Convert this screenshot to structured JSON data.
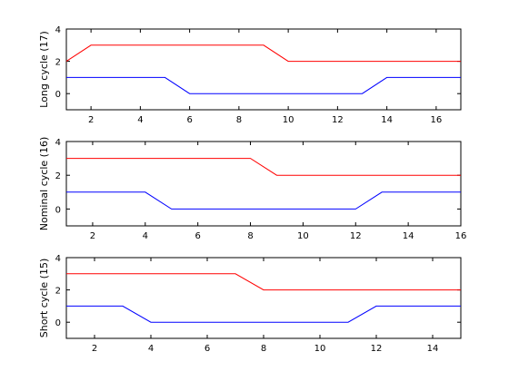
{
  "chart_data": [
    {
      "type": "line",
      "title": "",
      "xlabel": "",
      "ylabel": "Long cycle (17)",
      "xlim": [
        1,
        17
      ],
      "ylim": [
        -1,
        4
      ],
      "xticks": [
        2,
        4,
        6,
        8,
        10,
        12,
        14,
        16
      ],
      "yticks": [
        0,
        2,
        4
      ],
      "grid": false,
      "series": [
        {
          "color": "#ff0000",
          "x": [
            1,
            2,
            9,
            10,
            17
          ],
          "y": [
            2,
            3,
            3,
            2,
            2
          ]
        },
        {
          "color": "#0000ff",
          "x": [
            1,
            5,
            6,
            13,
            14,
            17
          ],
          "y": [
            1,
            1,
            0,
            0,
            1,
            1
          ]
        }
      ]
    },
    {
      "type": "line",
      "title": "",
      "xlabel": "",
      "ylabel": "Nominal cycle (16)",
      "xlim": [
        1,
        16
      ],
      "ylim": [
        -1,
        4
      ],
      "xticks": [
        2,
        4,
        6,
        8,
        10,
        12,
        14,
        16
      ],
      "yticks": [
        0,
        2,
        4
      ],
      "grid": false,
      "series": [
        {
          "color": "#ff0000",
          "x": [
            1,
            8,
            9,
            16
          ],
          "y": [
            3,
            3,
            2,
            2
          ]
        },
        {
          "color": "#0000ff",
          "x": [
            1,
            4,
            5,
            12,
            13,
            16
          ],
          "y": [
            1,
            1,
            0,
            0,
            1,
            1
          ]
        }
      ]
    },
    {
      "type": "line",
      "title": "",
      "xlabel": "",
      "ylabel": "Short cycle (15)",
      "xlim": [
        1,
        15
      ],
      "ylim": [
        -1,
        4
      ],
      "xticks": [
        2,
        4,
        6,
        8,
        10,
        12,
        14
      ],
      "yticks": [
        0,
        2,
        4
      ],
      "grid": false,
      "series": [
        {
          "color": "#ff0000",
          "x": [
            1,
            7,
            8,
            15
          ],
          "y": [
            3,
            3,
            2,
            2
          ]
        },
        {
          "color": "#0000ff",
          "x": [
            1,
            3,
            4,
            11,
            12,
            15
          ],
          "y": [
            1,
            1,
            0,
            0,
            1,
            1
          ]
        }
      ]
    }
  ]
}
